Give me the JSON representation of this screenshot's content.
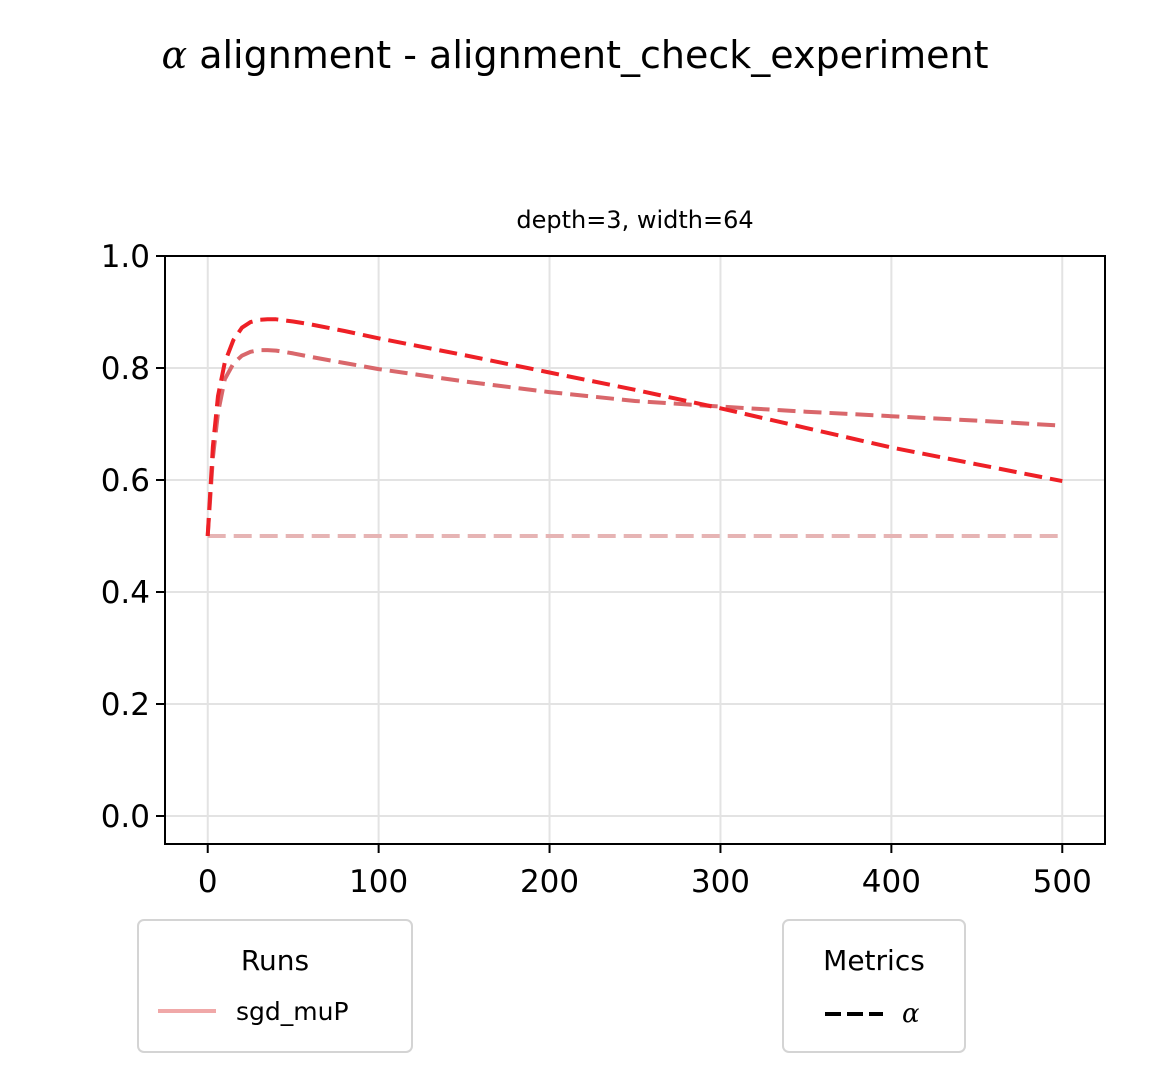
{
  "figure": {
    "suptitle_symbol": "α",
    "suptitle_text": " alignment - alignment_check_experiment"
  },
  "chart_data": {
    "type": "line",
    "title": "depth=3, width=64",
    "xlabel": "",
    "ylabel": "",
    "xlim": [
      -25,
      525
    ],
    "ylim": [
      -0.05,
      1.0
    ],
    "xticks": [
      0,
      100,
      200,
      300,
      400,
      500
    ],
    "xtick_labels": [
      "0",
      "100",
      "200",
      "300",
      "400",
      "500"
    ],
    "yticks": [
      0.0,
      0.2,
      0.4,
      0.6,
      0.8,
      1.0
    ],
    "ytick_labels": [
      "0.0",
      "0.2",
      "0.4",
      "0.6",
      "0.8",
      "1.0"
    ],
    "grid": true,
    "series": [
      {
        "color": "#e6b4b4",
        "x": [
          0,
          500
        ],
        "y": [
          0.5,
          0.5
        ]
      },
      {
        "color": "#d9676b",
        "x": [
          0,
          3,
          6,
          10,
          15,
          20,
          25,
          30,
          35,
          40,
          50,
          60,
          80,
          100,
          150,
          200,
          250,
          300,
          350,
          400,
          450,
          500
        ],
        "y": [
          0.5,
          0.64,
          0.72,
          0.78,
          0.808,
          0.822,
          0.829,
          0.832,
          0.832,
          0.831,
          0.826,
          0.82,
          0.809,
          0.798,
          0.776,
          0.757,
          0.741,
          0.731,
          0.722,
          0.714,
          0.706,
          0.697
        ]
      },
      {
        "color": "#ee2026",
        "x": [
          0,
          3,
          6,
          10,
          15,
          20,
          25,
          30,
          35,
          40,
          50,
          60,
          80,
          100,
          150,
          200,
          250,
          300,
          350,
          400,
          450,
          500
        ],
        "y": [
          0.5,
          0.66,
          0.75,
          0.81,
          0.85,
          0.872,
          0.882,
          0.886,
          0.887,
          0.887,
          0.883,
          0.878,
          0.866,
          0.853,
          0.823,
          0.792,
          0.761,
          0.728,
          0.693,
          0.658,
          0.628,
          0.598
        ]
      }
    ]
  },
  "legend_runs": {
    "title": "Runs",
    "label": "sgd_muP",
    "color": "#f0a8a8"
  },
  "legend_metrics": {
    "title": "Metrics",
    "label": "α",
    "color": "#000000"
  }
}
